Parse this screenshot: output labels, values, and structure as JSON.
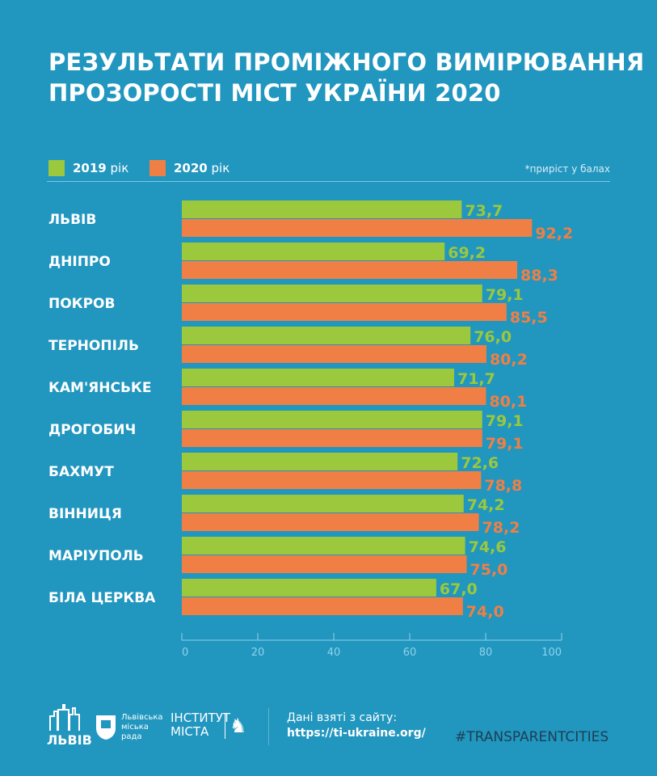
{
  "title_lines": [
    "РЕЗУЛЬТАТИ ПРОМІЖНОГО ВИМІРЮВАННЯ",
    "ПРОЗОРОСТІ МІСТ УКРАЇНИ 2020"
  ],
  "note": "*приріст у балах",
  "colors": {
    "background": "#2196bf",
    "green": "#9bc83c",
    "orange": "#f07f45",
    "axis": "#8fd3ea"
  },
  "chart_data": {
    "type": "bar",
    "orientation": "horizontal",
    "categories": [
      "ЛЬВІВ",
      "ДНІПРО",
      "ПОКРОВ",
      "ТЕРНОПІЛЬ",
      "КАМ'ЯНСЬКЕ",
      "ДРОГОБИЧ",
      "БАХМУТ",
      "ВІННИЦЯ",
      "МАРІУПОЛЬ",
      "БІЛА ЦЕРКВА"
    ],
    "series": [
      {
        "name": "2019",
        "suffix": "рік",
        "color": "#9bc83c",
        "values": [
          73.7,
          69.2,
          79.1,
          76.0,
          71.7,
          79.1,
          72.6,
          74.2,
          74.6,
          67.0
        ],
        "labels": [
          "73,7",
          "69,2",
          "79,1",
          "76,0",
          "71,7",
          "79,1",
          "72,6",
          "74,2",
          "74,6",
          "67,0"
        ]
      },
      {
        "name": "2020",
        "suffix": "рік",
        "color": "#f07f45",
        "values": [
          92.2,
          88.3,
          85.5,
          80.2,
          80.1,
          79.1,
          78.8,
          78.2,
          75.0,
          74.0
        ],
        "labels": [
          "92,2",
          "88,3",
          "85,5",
          "80,2",
          "80,1",
          "79,1",
          "78,8",
          "78,2",
          "75,0",
          "74,0"
        ]
      }
    ],
    "xlim": [
      0,
      100
    ],
    "xticks": [
      "0",
      "20",
      "40",
      "60",
      "80",
      "100"
    ],
    "legend": "top-left",
    "grid": false
  },
  "footer": {
    "logo_lviv": "ЛЬВІВ",
    "logo_council": "Львівська міська рада",
    "logo_institute": "ІНСТИТУТ МІСТА",
    "source_label": "Дані взяті з сайту:",
    "source_url": "https://ti-ukraine.org/",
    "hashtag": "#TRANSPARENTCITIES"
  }
}
